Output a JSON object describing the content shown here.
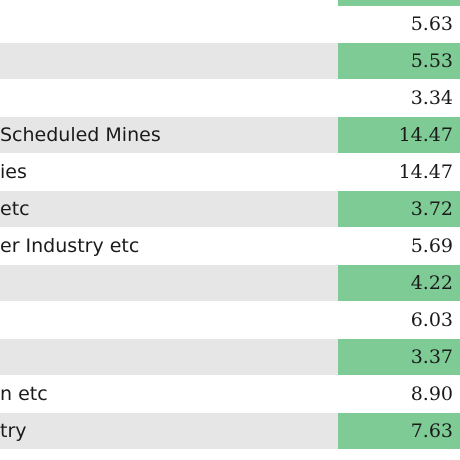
{
  "colors": {
    "highlight": "#7ecb96",
    "shaded_row": "#e6e6e6",
    "plain_row": "#ffffff"
  },
  "rows": [
    {
      "label": "",
      "value": "5.63",
      "shaded": false,
      "green": false
    },
    {
      "label": "",
      "value": "5.53",
      "shaded": true,
      "green": true
    },
    {
      "label": "",
      "value": "3.34",
      "shaded": false,
      "green": false
    },
    {
      "label": "Scheduled Mines",
      "value": "14.47",
      "shaded": true,
      "green": true
    },
    {
      "label": "ies",
      "value": "14.47",
      "shaded": false,
      "green": false
    },
    {
      "label": "etc",
      "value": "3.72",
      "shaded": true,
      "green": true
    },
    {
      "label": "er Industry etc",
      "value": "5.69",
      "shaded": false,
      "green": false
    },
    {
      "label": "",
      "value": "4.22",
      "shaded": true,
      "green": true
    },
    {
      "label": "",
      "value": "6.03",
      "shaded": false,
      "green": false
    },
    {
      "label": "",
      "value": "3.37",
      "shaded": true,
      "green": true
    },
    {
      "label": "n etc",
      "value": "8.90",
      "shaded": false,
      "green": false
    },
    {
      "label": "try",
      "value": "7.63",
      "shaded": true,
      "green": true
    }
  ]
}
